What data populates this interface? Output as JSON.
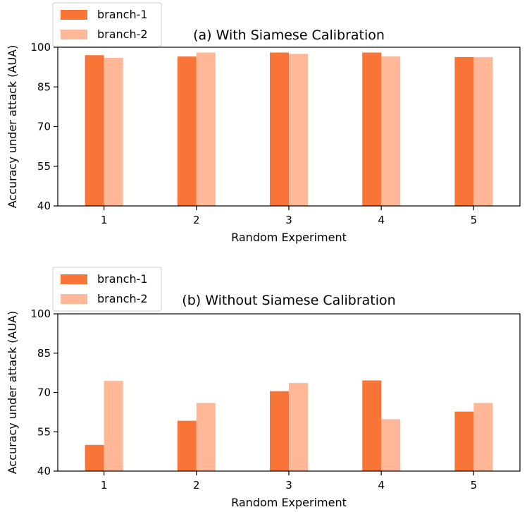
{
  "chart_data": [
    {
      "type": "bar",
      "title": "(a) With Siamese Calibration",
      "xlabel": "Random Experiment",
      "ylabel": "Accuracy under attack (AUA)",
      "categories": [
        "1",
        "2",
        "3",
        "4",
        "5"
      ],
      "ylim": [
        40,
        100
      ],
      "yticks": [
        40,
        55,
        70,
        85,
        100
      ],
      "grid": false,
      "legend_position": "upper-left",
      "series": [
        {
          "name": "branch-1",
          "color": "#f87537",
          "values": [
            97,
            96.5,
            98,
            98,
            96.3
          ]
        },
        {
          "name": "branch-2",
          "color": "#feb898",
          "values": [
            96,
            98,
            97.5,
            96.5,
            96.3
          ]
        }
      ]
    },
    {
      "type": "bar",
      "title": "(b) Without Siamese Calibration",
      "xlabel": "Random Experiment",
      "ylabel": "Accuracy under attack (AUA)",
      "categories": [
        "1",
        "2",
        "3",
        "4",
        "5"
      ],
      "ylim": [
        40,
        100
      ],
      "yticks": [
        40,
        55,
        70,
        85,
        100
      ],
      "grid": false,
      "legend_position": "upper-left",
      "series": [
        {
          "name": "branch-1",
          "color": "#f87537",
          "values": [
            50,
            59.2,
            70.5,
            74.6,
            62.7
          ]
        },
        {
          "name": "branch-2",
          "color": "#feb898",
          "values": [
            74.4,
            66,
            73.6,
            59.8,
            66
          ]
        }
      ]
    }
  ]
}
